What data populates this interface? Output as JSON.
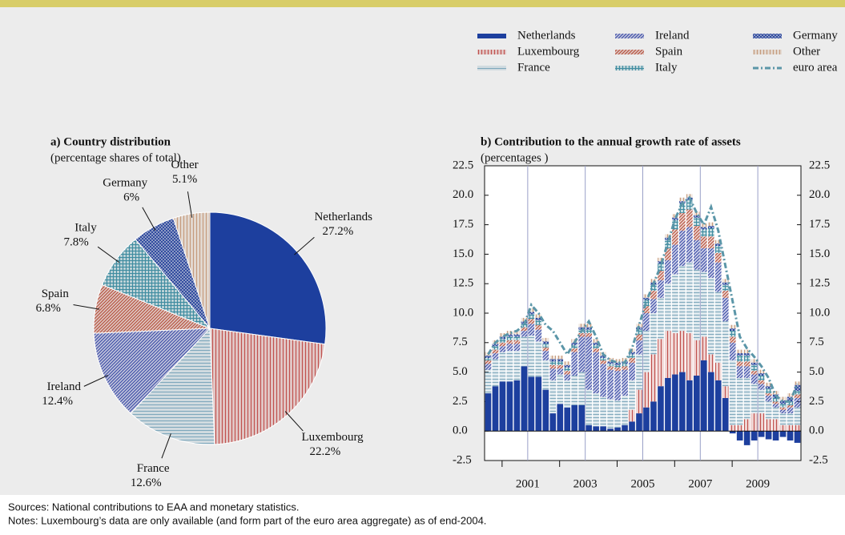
{
  "chart_data": [
    {
      "type": "pie",
      "title": "a) Country distribution",
      "subtitle": "(percentage shares of total)",
      "categories": [
        "Netherlands",
        "Luxembourg",
        "France",
        "Ireland",
        "Spain",
        "Italy",
        "Germany",
        "Other"
      ],
      "values": [
        27.2,
        22.2,
        12.6,
        12.4,
        6.8,
        7.8,
        6,
        5.1
      ],
      "value_labels": [
        "27.2%",
        "22.2%",
        "12.6%",
        "12.4%",
        "6.8%",
        "7.8%",
        "6%",
        "5.1%"
      ],
      "colors": [
        "#1d3f9e",
        "#c0504d",
        "#7fa8bc",
        "#3f4fa8",
        "#b5533f",
        "#3f8ca0",
        "#2f4a9e",
        "#c59a7c"
      ],
      "patterns": [
        "solid",
        "vertical",
        "horizontal",
        "diagonal",
        "diagonal",
        "grid",
        "crosshatch",
        "vertical"
      ]
    },
    {
      "type": "stacked-bar-line",
      "title": "b) Contribution to the annual growth rate of assets",
      "subtitle": "(percentages )",
      "x": [
        2000.125,
        2000.375,
        2000.625,
        2000.875,
        2001.125,
        2001.375,
        2001.625,
        2001.875,
        2002.125,
        2002.375,
        2002.625,
        2002.875,
        2003.125,
        2003.375,
        2003.625,
        2003.875,
        2004.125,
        2004.375,
        2004.625,
        2004.875,
        2005.125,
        2005.375,
        2005.625,
        2005.875,
        2006.125,
        2006.375,
        2006.625,
        2006.875,
        2007.125,
        2007.375,
        2007.625,
        2007.875,
        2008.125,
        2008.375,
        2008.625,
        2008.875,
        2009.125,
        2009.375,
        2009.625,
        2009.875,
        2010.125,
        2010.375,
        2010.625,
        2010.875
      ],
      "xlim": [
        2000,
        2011
      ],
      "xticks": [
        {
          "value": 2001.5,
          "label": "2001"
        },
        {
          "value": 2003.5,
          "label": "2003"
        },
        {
          "value": 2005.5,
          "label": "2005"
        },
        {
          "value": 2007.5,
          "label": "2007"
        },
        {
          "value": 2009.5,
          "label": "2009"
        }
      ],
      "ylim": [
        -2.5,
        22.5
      ],
      "yticks": [
        -2.5,
        {
          "value": 0,
          "label": "0.0"
        },
        2.5,
        {
          "value": 5,
          "label": "5.0"
        },
        7.5,
        {
          "value": 10,
          "label": "10.0"
        },
        12.5,
        {
          "value": 15,
          "label": "15.0"
        },
        17.5,
        {
          "value": 20,
          "label": "20.0"
        },
        22.5
      ],
      "y2lim": [
        -2.5,
        22.5
      ],
      "y2ticks": [
        -2.5,
        {
          "value": 0,
          "label": "0.0"
        },
        2.5,
        {
          "value": 5,
          "label": "5.0"
        },
        7.5,
        {
          "value": 10,
          "label": "10.0"
        },
        12.5,
        {
          "value": 15,
          "label": "15.0"
        },
        17.5,
        {
          "value": 20,
          "label": "20.0"
        },
        22.5
      ],
      "grid": true,
      "series": [
        {
          "name": "Netherlands",
          "color": "#1d3f9e",
          "pattern": "solid",
          "values": [
            3.2,
            3.8,
            4.2,
            4.2,
            4.3,
            5.5,
            4.6,
            4.6,
            3.5,
            1.5,
            2.3,
            2.0,
            2.2,
            2.2,
            0.5,
            0.4,
            0.4,
            0.2,
            0.3,
            0.5,
            0.8,
            1.5,
            2.0,
            2.5,
            3.8,
            4.5,
            4.8,
            5.0,
            4.3,
            4.7,
            6.0,
            5.0,
            4.3,
            2.8,
            -0.2,
            -0.8,
            -1.2,
            -0.8,
            -0.5,
            -0.7,
            -0.8,
            -0.5,
            -0.8,
            -1.0
          ]
        },
        {
          "name": "Luxembourg",
          "color": "#c0504d",
          "pattern": "vertical",
          "values": [
            0,
            0,
            0,
            0,
            0,
            0,
            0,
            0,
            0,
            0,
            0,
            0,
            0,
            0,
            0,
            0,
            0,
            0,
            0,
            0,
            1,
            2,
            3,
            4,
            4,
            4,
            3.5,
            3.5,
            4,
            3,
            2,
            1.5,
            1.5,
            1,
            0.5,
            0.5,
            1,
            1.5,
            1.5,
            1,
            1,
            0.5,
            0.5,
            0.5
          ]
        },
        {
          "name": "France",
          "color": "#7fa8bc",
          "pattern": "horizontal",
          "values": [
            2,
            2.3,
            2.5,
            2.6,
            2.5,
            2.5,
            3.5,
            3,
            2.5,
            2.8,
            2.5,
            2.3,
            2.5,
            2.8,
            3,
            2.8,
            2.5,
            2.5,
            2.3,
            2.5,
            2.5,
            3,
            3.5,
            3.5,
            3.5,
            4,
            5,
            5.5,
            6,
            6,
            5.5,
            6.5,
            6,
            5.5,
            5.5,
            4,
            3.5,
            2.5,
            2,
            1.5,
            1,
            1,
            1,
            1.5
          ]
        },
        {
          "name": "Ireland",
          "color": "#3f4fa8",
          "pattern": "diagonal",
          "values": [
            0.5,
            0.5,
            0.5,
            0.6,
            0.6,
            0.5,
            1,
            1,
            0.8,
            1,
            0.5,
            0.5,
            2,
            3,
            4.5,
            3.5,
            2.8,
            2.5,
            2.5,
            2.2,
            1.5,
            1.2,
            1.5,
            1.2,
            1.5,
            2,
            2.5,
            3,
            3,
            2.5,
            2,
            2.5,
            2.5,
            2,
            1.5,
            1,
            1,
            0.8,
            0.5,
            0.5,
            0.3,
            0.3,
            0.5,
            0.8
          ]
        },
        {
          "name": "Spain",
          "color": "#b5533f",
          "pattern": "diagonal",
          "values": [
            0.3,
            0.3,
            0.3,
            0.3,
            0.3,
            0.3,
            0.4,
            0.4,
            0.3,
            0.3,
            0.3,
            0.3,
            0.3,
            0.3,
            0.3,
            0.3,
            0.3,
            0.3,
            0.3,
            0.3,
            0.4,
            0.5,
            0.6,
            0.7,
            0.8,
            1,
            1.3,
            1.5,
            1.5,
            1.2,
            1,
            1,
            0.8,
            0.6,
            0.5,
            0.4,
            0.4,
            0.3,
            0.3,
            0.2,
            0.2,
            0.2,
            0.2,
            0.3
          ]
        },
        {
          "name": "Italy",
          "color": "#3f8ca0",
          "pattern": "grid",
          "values": [
            0.2,
            0.3,
            0.3,
            0.3,
            0.3,
            0.3,
            0.4,
            0.4,
            0.3,
            0.3,
            0.3,
            0.3,
            0.3,
            0.3,
            0.3,
            0.3,
            0.2,
            0.2,
            0.2,
            0.2,
            0.3,
            0.4,
            0.5,
            0.5,
            0.6,
            0.7,
            0.8,
            0.8,
            0.8,
            0.7,
            0.6,
            0.7,
            0.6,
            0.5,
            0.5,
            0.5,
            0.5,
            0.5,
            0.4,
            0.4,
            0.3,
            0.3,
            0.3,
            0.3
          ]
        },
        {
          "name": "Germany",
          "color": "#2f4a9e",
          "pattern": "crosshatch",
          "values": [
            0.2,
            0.2,
            0.2,
            0.2,
            0.2,
            0.2,
            0.2,
            0.2,
            0.2,
            0.2,
            0.2,
            0.2,
            0.2,
            0.2,
            0.2,
            0.2,
            0.2,
            0.2,
            0.2,
            0.2,
            0.2,
            0.2,
            0.2,
            0.2,
            0.2,
            0.2,
            0.2,
            0.2,
            0.2,
            0.2,
            0.2,
            0.2,
            0.2,
            0.2,
            0.2,
            0.2,
            0.2,
            0.2,
            0.2,
            0.2,
            0.3,
            0.3,
            0.4,
            0.5
          ]
        },
        {
          "name": "Other",
          "color": "#c59a7c",
          "pattern": "vertical",
          "values": [
            0.3,
            0.3,
            0.3,
            0.3,
            0.3,
            0.3,
            0.3,
            0.3,
            0.3,
            0.3,
            0.3,
            0.3,
            0.3,
            0.3,
            0.3,
            0.3,
            0.3,
            0.3,
            0.3,
            0.3,
            0.3,
            0.3,
            0.3,
            0.3,
            0.3,
            0.3,
            0.3,
            0.3,
            0.3,
            0.3,
            0.3,
            0.3,
            0.3,
            0.3,
            0.3,
            0.3,
            0.3,
            0.3,
            0.3,
            0.3,
            0.3,
            0.3,
            0.3,
            0.3
          ]
        },
        {
          "name": "euro area",
          "color": "#5b96a8",
          "pattern": "dash-dot",
          "values": [
            6.5,
            7.5,
            8,
            8.3,
            8.5,
            9,
            10.7,
            10,
            9,
            8.5,
            7.5,
            6.5,
            7.5,
            8.5,
            9.3,
            8,
            6.5,
            6,
            5.8,
            5.8,
            7,
            9,
            11,
            12.5,
            14,
            16,
            18,
            19.3,
            19.8,
            18.5,
            17.5,
            19,
            17,
            14,
            11,
            8,
            7,
            6.3,
            5.5,
            4.5,
            3,
            2.5,
            2.5,
            4
          ]
        }
      ]
    }
  ],
  "footer": {
    "sources": "Sources: National contributions to EAA and monetary statistics.",
    "notes": "Notes: Luxembourg’s data are only available (and form part of the euro area aggregate) as of end-2004."
  }
}
